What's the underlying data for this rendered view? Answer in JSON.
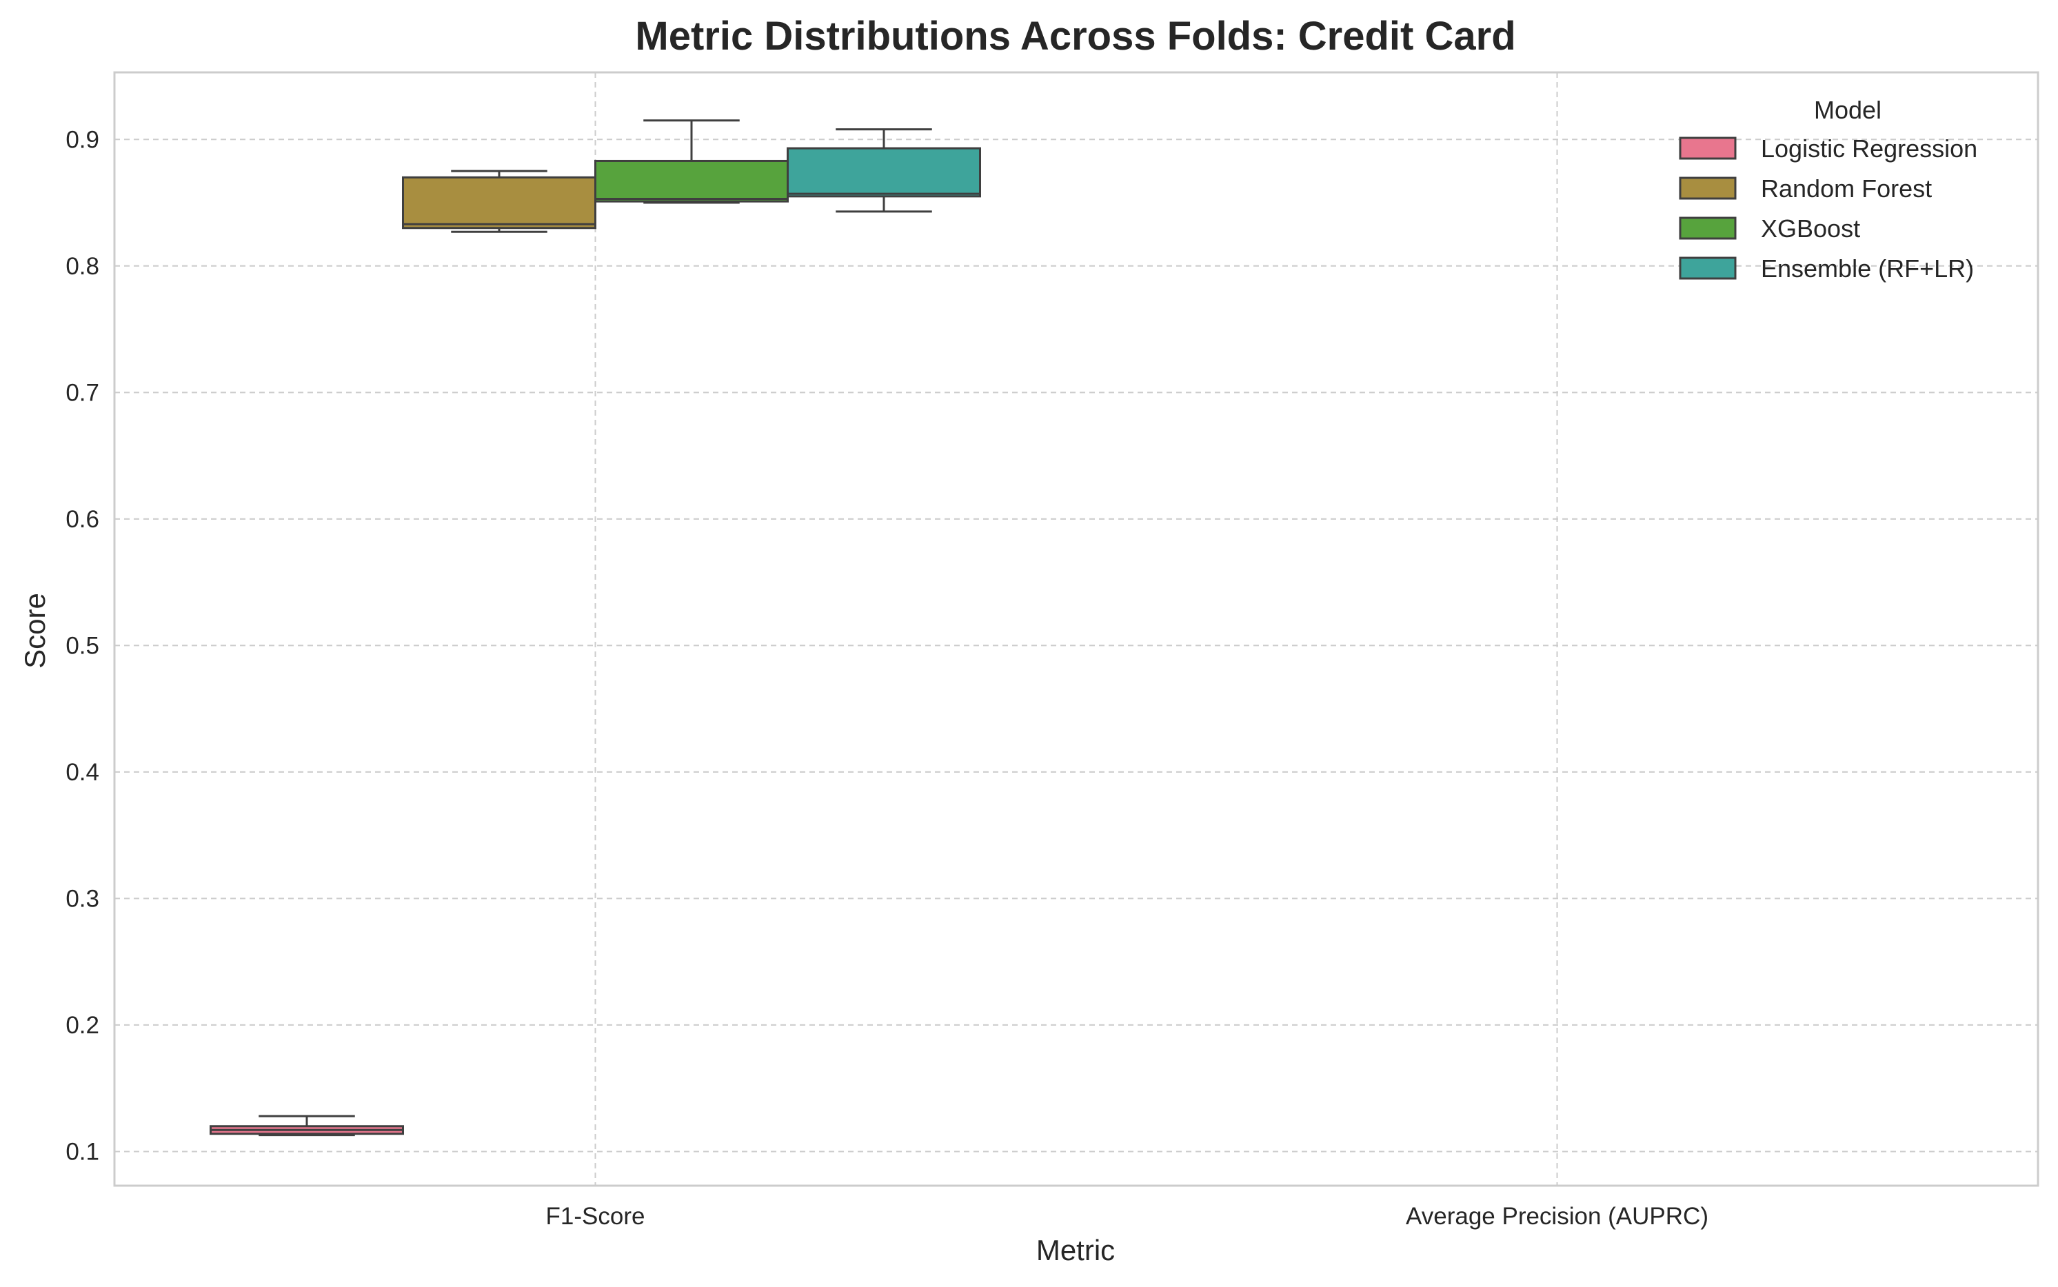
{
  "chart_data": {
    "type": "box",
    "title": "Metric Distributions Across Folds: Credit Card",
    "xlabel": "Metric",
    "ylabel": "Score",
    "ylim": [
      0.073,
      0.953
    ],
    "yticks": [
      0.1,
      0.2,
      0.3,
      0.4,
      0.5,
      0.6,
      0.7,
      0.8,
      0.9
    ],
    "ytick_labels": [
      "0.1",
      "0.2",
      "0.3",
      "0.4",
      "0.5",
      "0.6",
      "0.7",
      "0.8",
      "0.9"
    ],
    "categories": [
      "F1-Score",
      "Average Precision (AUPRC)"
    ],
    "grid": true,
    "legend": {
      "title": "Model",
      "placement": "top-right"
    },
    "series": [
      {
        "name": "Logistic Regression",
        "color": "#e8768e",
        "boxes": [
          {
            "category": "F1-Score",
            "whisker_low": 0.113,
            "q1": 0.114,
            "median": 0.117,
            "q3": 0.12,
            "whisker_high": 0.128
          }
        ]
      },
      {
        "name": "Random Forest",
        "color": "#a88e40",
        "boxes": [
          {
            "category": "F1-Score",
            "whisker_low": 0.827,
            "q1": 0.83,
            "median": 0.833,
            "q3": 0.87,
            "whisker_high": 0.875
          }
        ]
      },
      {
        "name": "XGBoost",
        "color": "#57a33d",
        "boxes": [
          {
            "category": "F1-Score",
            "whisker_low": 0.85,
            "q1": 0.851,
            "median": 0.853,
            "q3": 0.883,
            "whisker_high": 0.915
          }
        ]
      },
      {
        "name": "Ensemble (RF+LR)",
        "color": "#3ea49b",
        "boxes": [
          {
            "category": "F1-Score",
            "whisker_low": 0.843,
            "q1": 0.855,
            "median": 0.857,
            "q3": 0.893,
            "whisker_high": 0.908
          }
        ]
      }
    ]
  }
}
